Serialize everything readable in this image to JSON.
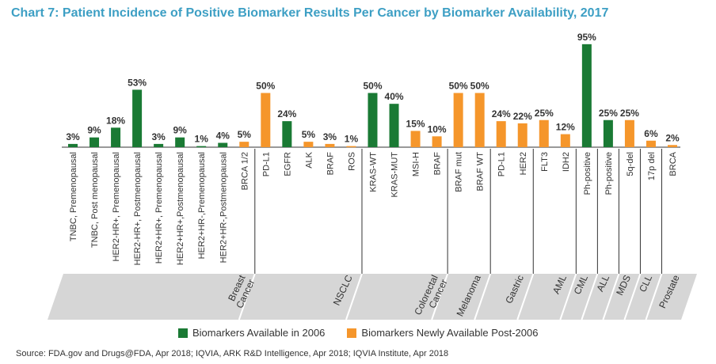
{
  "title": "Chart 7: Patient Incidence of Positive Biomarker Results Per Cancer by Biomarker Availability, 2017",
  "source": "Source: FDA.gov and Drugs@FDA, Apr 2018; IQVIA, ARK R&D Intelligence, Apr 2018; IQVIA Institute, Apr 2018",
  "legend": {
    "available_2006": "Biomarkers Available in 2006",
    "new_post_2006": "Biomarkers Newly Available Post-2006"
  },
  "colors": {
    "green": "#1a7a34",
    "orange": "#f5962b",
    "title": "#3d9fc4",
    "band": "#d6d6d6"
  },
  "chart_data": {
    "type": "bar",
    "ylim": [
      0,
      100
    ],
    "categories": [
      "TNBC, Premenopausal",
      "TNBC, Post menopausal",
      "HER2-HR+, Premenopausal",
      "HER2-HR+, Postmenopausal",
      "HER2+HR+, Premenopausal",
      "HER2+HR+,Postmenopausal",
      "HER2+HR-,Premenopausal",
      "HER2+HR-,Postmenopausal",
      "BRCA 1/2",
      "PD-L1",
      "EGFR",
      "ALK",
      "BRAF",
      "ROS",
      "KRAS-WT",
      "KRAS-MUT",
      "MSI-H",
      "BRAF",
      "BRAF mut",
      "BRAF WT",
      "PD-L1",
      "HER2",
      "FLT3",
      "IDH2",
      "Ph-positive",
      "Ph-positive",
      "5q-del",
      "17p del",
      "BRCA"
    ],
    "values": [
      3,
      9,
      18,
      53,
      3,
      9,
      1,
      4,
      5,
      50,
      24,
      5,
      3,
      1,
      50,
      40,
      15,
      10,
      50,
      50,
      24,
      22,
      25,
      12,
      95,
      25,
      25,
      6,
      2
    ],
    "value_labels": [
      "3%",
      "9%",
      "18%",
      "53%",
      "3%",
      "9%",
      "1%",
      "4%",
      "5%",
      "50%",
      "24%",
      "5%",
      "3%",
      "1%",
      "50%",
      "40%",
      "15%",
      "10%",
      "50%",
      "50%",
      "24%",
      "22%",
      "25%",
      "12%",
      "95%",
      "25%",
      "25%",
      "6%",
      "2%"
    ],
    "availability": [
      "2006",
      "2006",
      "2006",
      "2006",
      "2006",
      "2006",
      "2006",
      "2006",
      "post-2006",
      "post-2006",
      "2006",
      "post-2006",
      "post-2006",
      "post-2006",
      "2006",
      "2006",
      "post-2006",
      "post-2006",
      "post-2006",
      "post-2006",
      "post-2006",
      "post-2006",
      "post-2006",
      "post-2006",
      "2006",
      "2006",
      "post-2006",
      "post-2006",
      "post-2006"
    ],
    "groups": [
      {
        "name": "Breast Cancer",
        "line1": "Breast",
        "line2": "Cancer",
        "first": 0,
        "last": 8
      },
      {
        "name": "NSCLC",
        "line1": "NSCLC",
        "line2": "",
        "first": 9,
        "last": 13
      },
      {
        "name": "Colorectal Cancer",
        "line1": "Colorectal",
        "line2": "Cancer",
        "first": 14,
        "last": 17
      },
      {
        "name": "Melanoma",
        "line1": "Melanoma",
        "line2": "",
        "first": 18,
        "last": 19
      },
      {
        "name": "Gastric",
        "line1": "Gastric",
        "line2": "",
        "first": 20,
        "last": 21
      },
      {
        "name": "AML",
        "line1": "AML",
        "line2": "",
        "first": 22,
        "last": 23
      },
      {
        "name": "CML",
        "line1": "CML",
        "line2": "",
        "first": 24,
        "last": 24
      },
      {
        "name": "ALL",
        "line1": "ALL",
        "line2": "",
        "first": 25,
        "last": 25
      },
      {
        "name": "MDS",
        "line1": "MDS",
        "line2": "",
        "first": 26,
        "last": 26
      },
      {
        "name": "CLL",
        "line1": "CLL",
        "line2": "",
        "first": 27,
        "last": 27
      },
      {
        "name": "Prostate",
        "line1": "Prostate",
        "line2": "",
        "first": 28,
        "last": 28
      }
    ]
  }
}
